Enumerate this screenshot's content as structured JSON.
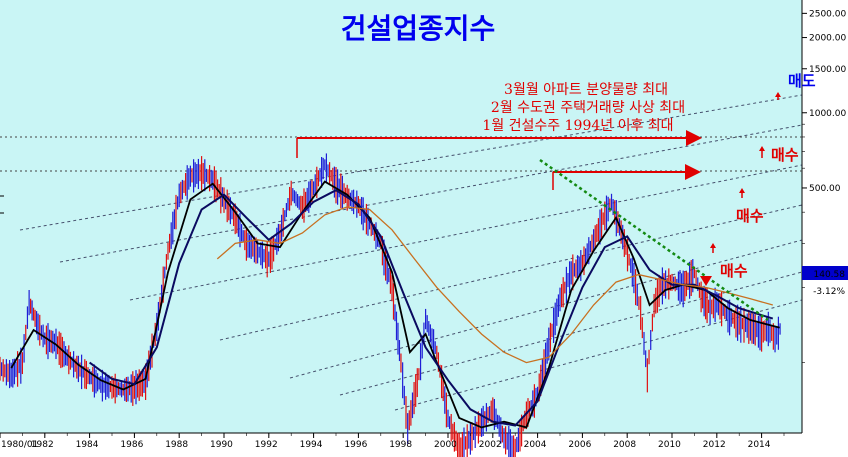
{
  "chart_data": {
    "type": "line",
    "title": "건설업종지수",
    "xlabel": "",
    "ylabel": "",
    "x_range": [
      1980,
      2015.2
    ],
    "log_scale": true,
    "ylim": [
      60,
      2700
    ],
    "y_ticks": [
      "2500.00",
      "2000.00",
      "1500.00",
      "1000.00",
      "500.00"
    ],
    "y_tick_values": [
      2500,
      2000,
      1500,
      1000,
      500
    ],
    "x_ticks": [
      "1980/01",
      "1982",
      "1984",
      "1986",
      "1988",
      "1990",
      "1992",
      "1994",
      "1996",
      "1998",
      "2000",
      "2002",
      "2004",
      "2006",
      "2008",
      "2010",
      "2012",
      "2014"
    ],
    "x_tick_values": [
      1980,
      1982,
      1984,
      1986,
      1988,
      1990,
      1992,
      1994,
      1996,
      1998,
      2000,
      2002,
      2004,
      2006,
      2008,
      2010,
      2012,
      2014
    ],
    "last_value": "140.58",
    "last_change": "-3.12%",
    "grid": false,
    "annotations": [
      "3월월 아파트 분양물량 최대",
      "2월 수도권 주택거래량 사상 최대",
      "1월 건설수주 1994년 이후 최대"
    ],
    "signals": [
      "매도",
      "매수",
      "매수",
      "매수"
    ],
    "series": [
      {
        "values": [
          [
            1980.0,
            95
          ],
          [
            1980.5,
            90
          ],
          [
            1981.0,
            100
          ],
          [
            1981.3,
            175
          ],
          [
            1981.7,
            140
          ],
          [
            1982.0,
            125
          ],
          [
            1982.5,
            120
          ],
          [
            1983.0,
            105
          ],
          [
            1983.5,
            95
          ],
          [
            1984.0,
            88
          ],
          [
            1984.5,
            82
          ],
          [
            1985.0,
            80
          ],
          [
            1985.5,
            78
          ],
          [
            1986.0,
            80
          ],
          [
            1986.5,
            85
          ],
          [
            1987.0,
            140
          ],
          [
            1987.5,
            280
          ],
          [
            1988.0,
            470
          ],
          [
            1988.5,
            560
          ],
          [
            1989.0,
            580
          ],
          [
            1989.5,
            540
          ],
          [
            1990.0,
            450
          ],
          [
            1990.5,
            380
          ],
          [
            1991.0,
            300
          ],
          [
            1991.5,
            280
          ],
          [
            1992.0,
            260
          ],
          [
            1992.5,
            330
          ],
          [
            1993.0,
            480
          ],
          [
            1993.5,
            420
          ],
          [
            1994.0,
            500
          ],
          [
            1994.5,
            620
          ],
          [
            1995.0,
            520
          ],
          [
            1995.5,
            460
          ],
          [
            1996.0,
            430
          ],
          [
            1996.5,
            360
          ],
          [
            1997.0,
            300
          ],
          [
            1997.5,
            200
          ],
          [
            1997.9,
            100
          ],
          [
            1998.2,
            55
          ],
          [
            1998.7,
            90
          ],
          [
            1999.0,
            150
          ],
          [
            1999.5,
            110
          ],
          [
            2000.0,
            60
          ],
          [
            2000.5,
            45
          ],
          [
            2001.0,
            50
          ],
          [
            2001.5,
            58
          ],
          [
            2002.0,
            65
          ],
          [
            2002.5,
            50
          ],
          [
            2003.0,
            45
          ],
          [
            2003.5,
            62
          ],
          [
            2004.0,
            75
          ],
          [
            2004.5,
            120
          ],
          [
            2005.0,
            180
          ],
          [
            2005.5,
            230
          ],
          [
            2006.0,
            250
          ],
          [
            2006.5,
            310
          ],
          [
            2007.0,
            390
          ],
          [
            2007.3,
            440
          ],
          [
            2007.8,
            320
          ],
          [
            2008.3,
            220
          ],
          [
            2008.6,
            160
          ],
          [
            2008.9,
            90
          ],
          [
            2009.2,
            170
          ],
          [
            2009.5,
            205
          ],
          [
            2010.0,
            210
          ],
          [
            2010.5,
            200
          ],
          [
            2011.0,
            230
          ],
          [
            2011.3,
            185
          ],
          [
            2011.7,
            165
          ],
          [
            2012.0,
            175
          ],
          [
            2012.5,
            155
          ],
          [
            2013.0,
            145
          ],
          [
            2013.5,
            140
          ],
          [
            2014.0,
            132
          ],
          [
            2014.3,
            138
          ],
          [
            2014.6,
            125
          ],
          [
            2014.9,
            140.58
          ]
        ]
      },
      {
        "values": [
          [
            1980.5,
            95
          ],
          [
            1981.5,
            135
          ],
          [
            1982.5,
            118
          ],
          [
            1983.5,
            98
          ],
          [
            1984.5,
            85
          ],
          [
            1985.5,
            78
          ],
          [
            1986.5,
            86
          ],
          [
            1987.5,
            230
          ],
          [
            1988.5,
            450
          ],
          [
            1989.5,
            520
          ],
          [
            1990.5,
            400
          ],
          [
            1991.5,
            300
          ],
          [
            1992.5,
            290
          ],
          [
            1993.5,
            400
          ],
          [
            1994.5,
            530
          ],
          [
            1995.5,
            470
          ],
          [
            1996.5,
            380
          ],
          [
            1997.5,
            230
          ],
          [
            1998.3,
            110
          ],
          [
            1999.0,
            130
          ],
          [
            1999.5,
            100
          ],
          [
            2000.5,
            60
          ],
          [
            2001.5,
            55
          ],
          [
            2002.5,
            58
          ],
          [
            2003.5,
            55
          ],
          [
            2004.5,
            95
          ],
          [
            2005.5,
            195
          ],
          [
            2006.5,
            280
          ],
          [
            2007.5,
            380
          ],
          [
            2008.3,
            260
          ],
          [
            2009.0,
            170
          ],
          [
            2009.7,
            195
          ],
          [
            2010.5,
            205
          ],
          [
            2011.5,
            195
          ],
          [
            2012.5,
            165
          ],
          [
            2013.5,
            148
          ],
          [
            2014.8,
            138
          ]
        ]
      },
      {
        "values": [
          [
            1984.0,
            100
          ],
          [
            1985.0,
            86
          ],
          [
            1986.0,
            82
          ],
          [
            1987.0,
            115
          ],
          [
            1988.0,
            250
          ],
          [
            1989.0,
            410
          ],
          [
            1990.0,
            470
          ],
          [
            1991.0,
            380
          ],
          [
            1992.0,
            310
          ],
          [
            1993.0,
            360
          ],
          [
            1994.0,
            440
          ],
          [
            1995.0,
            490
          ],
          [
            1996.0,
            430
          ],
          [
            1997.0,
            320
          ],
          [
            1998.0,
            190
          ],
          [
            1999.0,
            115
          ],
          [
            2000.0,
            85
          ],
          [
            2001.0,
            65
          ],
          [
            2002.0,
            58
          ],
          [
            2003.0,
            56
          ],
          [
            2004.0,
            70
          ],
          [
            2005.0,
            120
          ],
          [
            2006.0,
            200
          ],
          [
            2007.0,
            290
          ],
          [
            2008.0,
            320
          ],
          [
            2009.0,
            235
          ],
          [
            2010.0,
            205
          ],
          [
            2011.0,
            205
          ],
          [
            2012.0,
            185
          ],
          [
            2013.0,
            165
          ],
          [
            2014.5,
            150
          ]
        ]
      },
      {
        "values": [
          [
            1989.7,
            260
          ],
          [
            1990.5,
            300
          ],
          [
            1991.5,
            310
          ],
          [
            1992.5,
            300
          ],
          [
            1993.5,
            330
          ],
          [
            1994.5,
            390
          ],
          [
            1995.5,
            420
          ],
          [
            1996.5,
            410
          ],
          [
            1997.5,
            340
          ],
          [
            1998.5,
            260
          ],
          [
            1999.5,
            200
          ],
          [
            2000.5,
            160
          ],
          [
            2001.5,
            130
          ],
          [
            2002.5,
            110
          ],
          [
            2003.5,
            100
          ],
          [
            2004.5,
            105
          ],
          [
            2005.5,
            130
          ],
          [
            2006.5,
            170
          ],
          [
            2007.5,
            210
          ],
          [
            2008.5,
            225
          ],
          [
            2009.5,
            215
          ],
          [
            2010.5,
            205
          ],
          [
            2011.5,
            200
          ],
          [
            2012.5,
            190
          ],
          [
            2013.5,
            180
          ],
          [
            2014.5,
            170
          ]
        ]
      }
    ]
  },
  "colors": {
    "background": "#c9f5f5",
    "price": "#1f1fd6",
    "ma_short": "#000000",
    "ma_mid": "#0a0a60",
    "ma_long": "#c87020",
    "resistance": "#e00000",
    "downtrend": "#138a13",
    "channel": "#1a1a40",
    "signal": "#e00000",
    "title": "#0000ee",
    "sell_signal": "#0000ee",
    "last_box": "#0000cc"
  }
}
